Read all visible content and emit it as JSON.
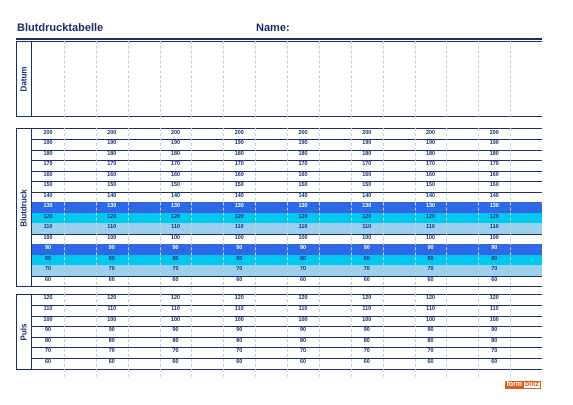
{
  "header": {
    "title": "Blutdrucktabelle",
    "name_label": "Name:"
  },
  "sections": {
    "datum": {
      "label": "Datum"
    },
    "blutdruck": {
      "label": "Blutdruck",
      "values": [
        "200",
        "190",
        "180",
        "170",
        "160",
        "150",
        "140",
        "130",
        "120",
        "110",
        "100",
        "90",
        "80",
        "70",
        "60"
      ],
      "highlights": {
        "130": "#2f67e6",
        "120": "#00c8f0",
        "110": "#9ad0ee",
        "90": "#2f67e6",
        "80": "#00c8f0",
        "70": "#9ad0ee"
      }
    },
    "puls": {
      "label": "Puls",
      "values": [
        "120",
        "110",
        "100",
        "90",
        "80",
        "70",
        "60"
      ]
    }
  },
  "columns": 8,
  "logo": {
    "part1": "form",
    "part2": "blitz"
  }
}
